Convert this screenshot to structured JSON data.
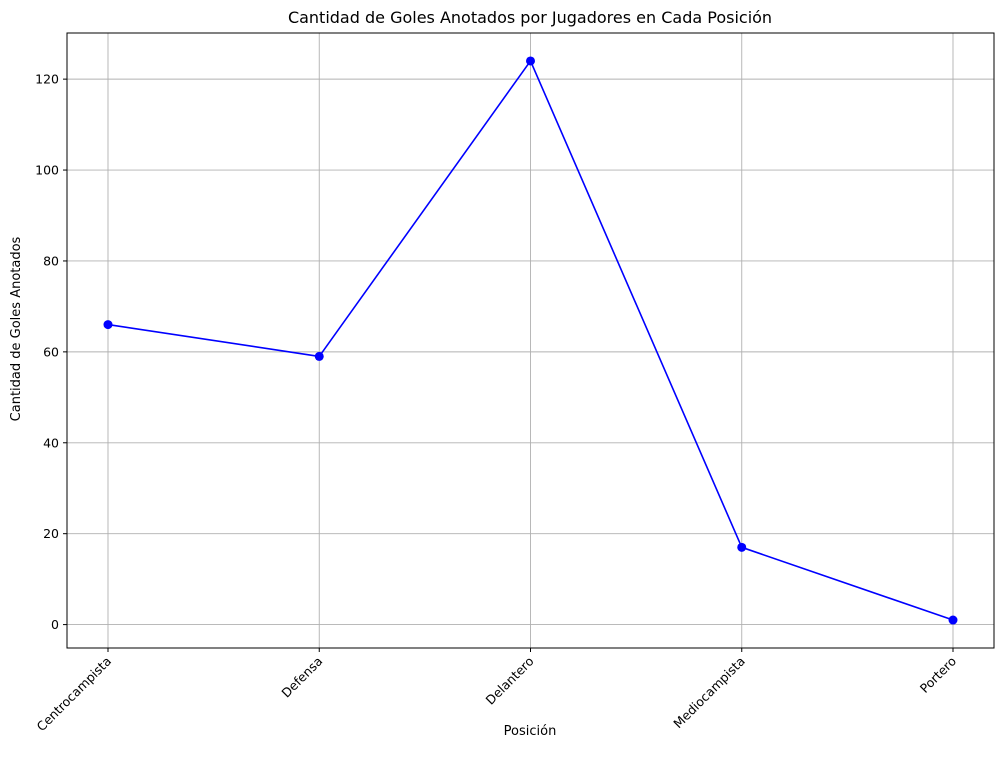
{
  "chart_data": {
    "type": "line",
    "title": "Cantidad de Goles Anotados por Jugadores en Cada Posición",
    "xlabel": "Posición",
    "ylabel": "Cantidad de Goles Anotados",
    "categories": [
      "Centrocampista",
      "Defensa",
      "Delantero",
      "Mediocampista",
      "Portero"
    ],
    "series": [
      {
        "values": [
          66,
          59,
          124,
          17,
          1
        ]
      }
    ],
    "y_ticks": [
      0,
      20,
      40,
      60,
      80,
      100,
      120
    ],
    "ylim": [
      -5.15,
      130.15
    ],
    "grid": true,
    "line_color": "#0000ff",
    "marker": "circle",
    "x_tick_rotation_deg": 45
  }
}
